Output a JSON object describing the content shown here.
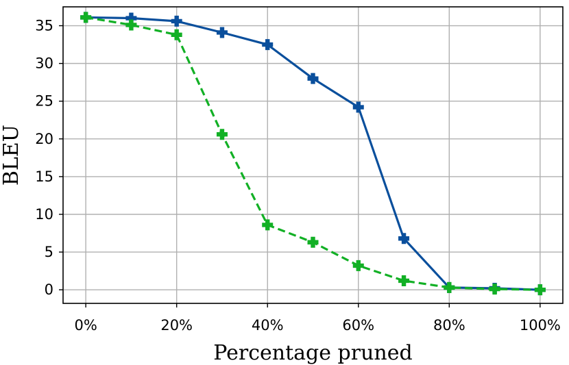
{
  "chart_data": {
    "type": "line",
    "title": "",
    "xlabel": "Percentage pruned",
    "ylabel": "BLEU",
    "x": [
      0,
      10,
      20,
      30,
      40,
      50,
      60,
      70,
      80,
      90,
      100
    ],
    "x_tick_values": [
      0,
      20,
      40,
      60,
      80,
      100
    ],
    "x_tick_labels": [
      "0%",
      "20%",
      "40%",
      "60%",
      "80%",
      "100%"
    ],
    "y_tick_values": [
      0,
      5,
      10,
      15,
      20,
      25,
      30,
      35
    ],
    "y_tick_labels": [
      "0",
      "5",
      "10",
      "15",
      "20",
      "25",
      "30",
      "35"
    ],
    "xlim": [
      -5,
      105
    ],
    "ylim": [
      -1.8,
      37.5
    ],
    "grid": true,
    "legend": "none",
    "series": [
      {
        "color": "#0a4f9c",
        "line_style": "solid",
        "marker": "plus",
        "values": [
          36.1,
          36.0,
          35.6,
          34.1,
          32.5,
          28.0,
          24.2,
          6.8,
          0.3,
          0.2,
          0.0
        ]
      },
      {
        "color": "#12b025",
        "line_style": "dashed",
        "marker": "plus",
        "values": [
          36.1,
          35.1,
          33.8,
          20.6,
          8.6,
          6.3,
          3.2,
          1.2,
          0.3,
          0.1,
          0.0
        ]
      }
    ]
  }
}
